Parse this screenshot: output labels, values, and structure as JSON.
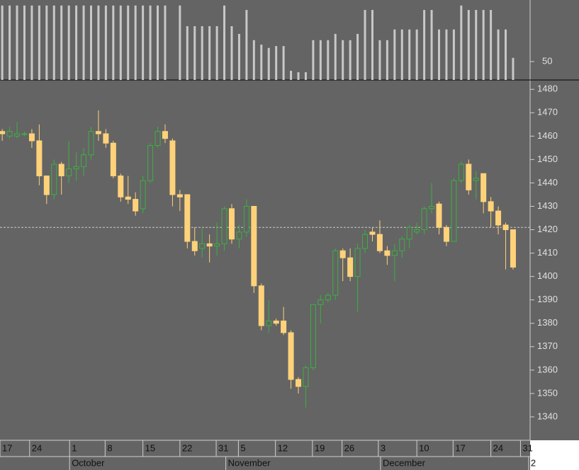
{
  "chart_data": [
    {
      "type": "bar",
      "values": [
        202,
        202,
        202,
        202,
        202,
        202,
        202,
        202,
        202,
        202,
        202,
        202,
        202,
        202,
        202,
        202,
        202,
        202,
        202,
        202,
        202,
        202,
        202,
        null,
        202,
        146,
        146,
        146,
        146,
        146,
        202,
        146,
        125,
        190,
        108,
        96,
        87,
        92,
        92,
        25,
        21,
        21,
        108,
        108,
        108,
        125,
        108,
        108,
        125,
        190,
        190,
        108,
        108,
        137,
        137,
        137,
        137,
        190,
        190,
        137,
        137,
        137,
        202,
        190,
        190,
        190,
        190,
        137,
        137,
        60
      ],
      "color": "#c8c8c8",
      "xlim": [
        -0.3,
        71.3
      ],
      "ylim": [
        0,
        217
      ],
      "yticks": [
        50
      ]
    },
    {
      "type": "candlestick",
      "open": [
        1462,
        1460,
        1460,
        1461,
        1461,
        1458,
        1443,
        1435,
        1448,
        1443,
        1446,
        1447,
        1452,
        1462,
        1461,
        1457,
        1443,
        1434,
        1433,
        1429,
        1441,
        1456,
        1462,
        1458,
        1435,
        1435,
        1415,
        1412,
        1414,
        1413,
        1414,
        1429,
        1416,
        1419,
        1430,
        1396,
        1379,
        1381,
        1381,
        1376,
        1356,
        1353,
        1361,
        1388,
        1390,
        1392,
        1411,
        1408,
        1400,
        1412,
        1419,
        1418,
        1411,
        1409,
        1411,
        1416,
        1419,
        1420,
        1429,
        1431,
        1421,
        1415,
        1441,
        1448,
        1441,
        1444,
        1432,
        1428,
        1422,
        1420
      ],
      "high": [
        1463,
        1464,
        1466,
        1462,
        1463,
        1465,
        1443,
        1450,
        1449,
        1458,
        1453,
        1455,
        1464,
        1471,
        1463,
        1458,
        1444,
        1443,
        1436,
        1443,
        1457,
        1464,
        1465,
        1459,
        1437,
        1435,
        1421,
        1421,
        1418,
        1423,
        1430,
        1431,
        1422,
        1433,
        1430,
        1397,
        1390,
        1382,
        1387,
        1377,
        1357,
        1362,
        1388,
        1392,
        1393,
        1412,
        1412,
        1412,
        1414,
        1420,
        1421,
        1424,
        1413,
        1414,
        1417,
        1422,
        1423,
        1430,
        1440,
        1432,
        1422,
        1442,
        1449,
        1450,
        1445,
        1444,
        1434,
        1430,
        1423,
        1420
      ],
      "low": [
        1458,
        1459,
        1459,
        1460,
        1455,
        1439,
        1431,
        1433,
        1435,
        1440,
        1441,
        1443,
        1450,
        1458,
        1455,
        1442,
        1432,
        1431,
        1426,
        1427,
        1440,
        1455,
        1457,
        1430,
        1428,
        1412,
        1409,
        1408,
        1406,
        1409,
        1411,
        1414,
        1412,
        1417,
        1393,
        1377,
        1376,
        1379,
        1375,
        1352,
        1350,
        1344,
        1360,
        1380,
        1389,
        1390,
        1398,
        1398,
        1385,
        1410,
        1415,
        1410,
        1405,
        1398,
        1408,
        1412,
        1418,
        1418,
        1427,
        1418,
        1413,
        1415,
        1440,
        1435,
        1433,
        1427,
        1421,
        1418,
        1403,
        1403
      ],
      "close": [
        1461,
        1462,
        1461,
        1461,
        1458,
        1443,
        1435,
        1448,
        1443,
        1446,
        1447,
        1452,
        1462,
        1461,
        1457,
        1443,
        1434,
        1433,
        1428,
        1441,
        1456,
        1462,
        1459,
        1435,
        1434,
        1415,
        1411,
        1414,
        1413,
        1414,
        1429,
        1416,
        1419,
        1430,
        1396,
        1379,
        1381,
        1380,
        1376,
        1356,
        1353,
        1361,
        1388,
        1390,
        1392,
        1411,
        1408,
        1400,
        1412,
        1418,
        1418,
        1411,
        1409,
        1411,
        1416,
        1421,
        1420,
        1429,
        1430,
        1421,
        1415,
        1441,
        1448,
        1437,
        1442,
        1432,
        1428,
        1422,
        1420,
        1404
      ],
      "up_color": "#3cb043",
      "down_color": "#ffd27a",
      "xlim": [
        -0.3,
        71.3
      ],
      "ylim": [
        1330,
        1484
      ],
      "yticks": [
        1340,
        1350,
        1360,
        1370,
        1380,
        1390,
        1400,
        1410,
        1420,
        1430,
        1440,
        1450,
        1460,
        1470,
        1480
      ],
      "reference_line": 1421,
      "xticks": [
        {
          "value": -0.3,
          "label": "17"
        },
        {
          "value": 3.7,
          "label": "24"
        },
        {
          "value": 9.1,
          "label": "1"
        },
        {
          "value": 13.9,
          "label": "8"
        },
        {
          "value": 19,
          "label": "15"
        },
        {
          "value": 24,
          "label": "22"
        },
        {
          "value": 28.9,
          "label": "31"
        },
        {
          "value": 31.9,
          "label": "5"
        },
        {
          "value": 36.9,
          "label": "12"
        },
        {
          "value": 41.9,
          "label": "19"
        },
        {
          "value": 45.9,
          "label": "26"
        },
        {
          "value": 50.8,
          "label": "3"
        },
        {
          "value": 56,
          "label": "10"
        },
        {
          "value": 60.9,
          "label": "17"
        },
        {
          "value": 66,
          "label": "24"
        },
        {
          "value": 70,
          "label": "31"
        }
      ],
      "month_ticks": [
        {
          "value": 9.1,
          "label": "October"
        },
        {
          "value": 30.2,
          "label": "November"
        },
        {
          "value": 51.1,
          "label": "December"
        },
        {
          "value": 71.1,
          "label": "2"
        }
      ]
    }
  ]
}
